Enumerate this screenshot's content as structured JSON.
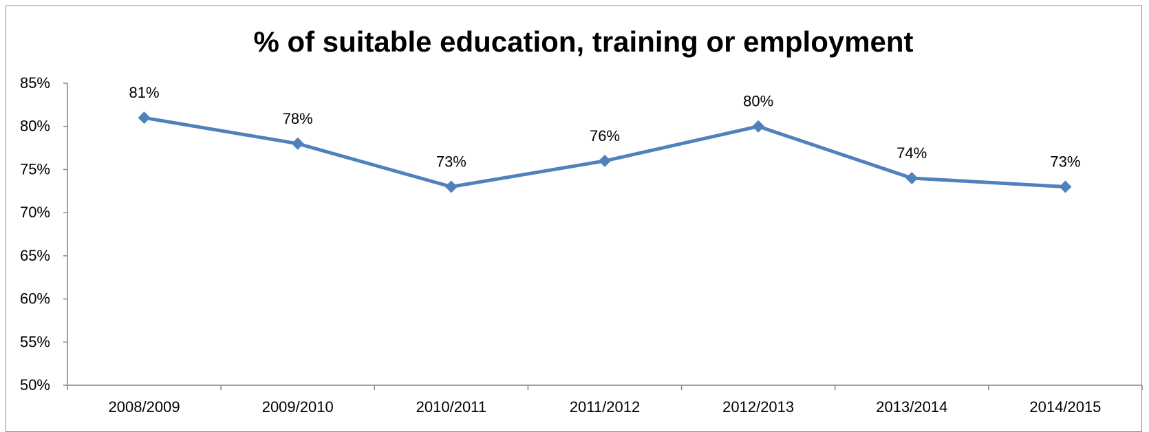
{
  "chart_data": {
    "type": "line",
    "title": "% of suitable education, training or employment",
    "xlabel": "",
    "ylabel": "",
    "categories": [
      "2008/2009",
      "2009/2010",
      "2010/2011",
      "2011/2012",
      "2012/2013",
      "2013/2014",
      "2014/2015"
    ],
    "series": [
      {
        "values": [
          81,
          78,
          73,
          76,
          80,
          74,
          73
        ],
        "data_labels": [
          "81%",
          "78%",
          "73%",
          "76%",
          "80%",
          "74%",
          "73%"
        ],
        "color": "#4F81BD",
        "marker": "diamond"
      }
    ],
    "ylim": [
      50,
      85
    ],
    "yticks": [
      50,
      55,
      60,
      65,
      70,
      75,
      80,
      85
    ],
    "ytick_labels": [
      "50%",
      "55%",
      "60%",
      "65%",
      "70%",
      "75%",
      "80%",
      "85%"
    ],
    "grid": false,
    "legend": "none"
  }
}
